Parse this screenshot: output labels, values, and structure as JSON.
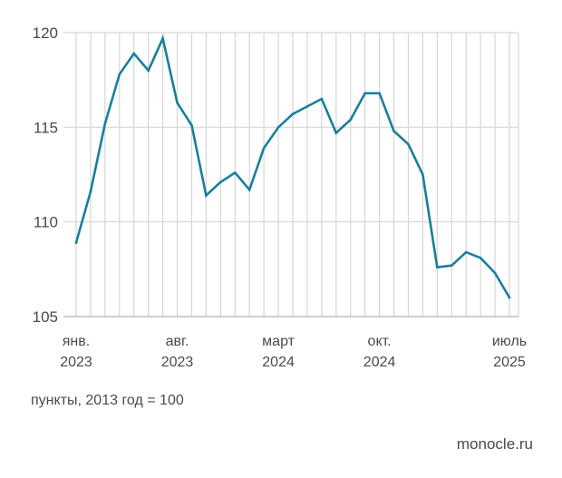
{
  "chart_data": {
    "type": "line",
    "unit_note": "пункты, 2013 год = 100",
    "x": [
      "2023-01",
      "2023-02",
      "2023-03",
      "2023-04",
      "2023-05",
      "2023-06",
      "2023-07",
      "2023-08",
      "2023-09",
      "2023-10",
      "2023-11",
      "2023-12",
      "2024-01",
      "2024-02",
      "2024-03",
      "2024-04",
      "2024-05",
      "2024-06",
      "2024-07",
      "2024-08",
      "2024-09",
      "2024-10",
      "2024-11",
      "2024-12",
      "2025-01",
      "2025-02",
      "2025-03",
      "2025-04",
      "2025-05",
      "2025-06",
      "2025-07"
    ],
    "values": [
      108.9,
      111.6,
      115.2,
      117.8,
      118.9,
      118.0,
      119.7,
      116.3,
      115.1,
      111.4,
      112.1,
      112.6,
      111.7,
      113.9,
      115.0,
      115.7,
      116.1,
      116.5,
      114.7,
      115.4,
      116.8,
      116.8,
      114.8,
      114.1,
      112.5,
      107.6,
      107.7,
      108.4,
      108.1,
      107.3,
      106.0
    ],
    "ylim": [
      105,
      120
    ],
    "yticks": [
      "105",
      "110",
      "115",
      "120"
    ],
    "xtick_labels": [
      {
        "month": "янв.",
        "year": "2023",
        "index": 0
      },
      {
        "month": "авг.",
        "year": "2023",
        "index": 7
      },
      {
        "month": "март",
        "year": "2024",
        "index": 14
      },
      {
        "month": "окт.",
        "year": "2024",
        "index": 21
      },
      {
        "month": "июль",
        "year": "2025",
        "index": 30
      }
    ],
    "grid": true,
    "line_color": "#1a7f9c",
    "grid_color": "#d6d6d6"
  },
  "footer": {
    "note": "пункты, 2013 год = 100",
    "brand": "monocle.ru"
  }
}
